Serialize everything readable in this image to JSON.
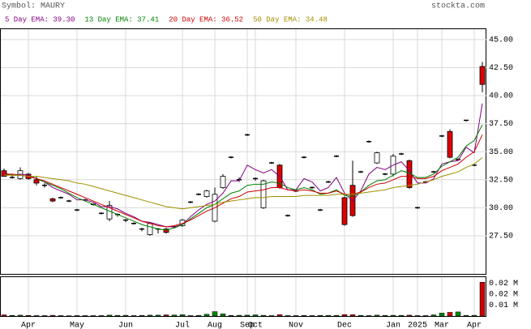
{
  "chart_data": {
    "type": "candlestick",
    "symbol": "Symbol: MAURY",
    "source": "stockta.com",
    "open": [
      33.3,
      32.7,
      32.6,
      33.0,
      32.5,
      32.0,
      30.8,
      30.9,
      30.6,
      29.8,
      30.7,
      30.3,
      29.5,
      29.0,
      29.3,
      28.8,
      28.6,
      28.0,
      27.6,
      28.0,
      28.1,
      28.3,
      28.4,
      30.5,
      31.2,
      31.0,
      28.8,
      31.8,
      34.5,
      32.5,
      36.5,
      32.5,
      30.0,
      34.0,
      33.8,
      29.3,
      31.5,
      34.5,
      31.8,
      29.8,
      32.3,
      34.6,
      30.9,
      32.0,
      33.2,
      35.9,
      34.0,
      33.0,
      33.0,
      34.8,
      34.2,
      30.0,
      32.3,
      33.2,
      36.4,
      36.8,
      34.3,
      37.7,
      33.8,
      42.6
    ],
    "high": [
      33.5,
      32.9,
      33.6,
      33.1,
      32.8,
      32.2,
      30.9,
      31.0,
      30.7,
      29.9,
      30.8,
      30.4,
      29.6,
      30.6,
      29.5,
      29.0,
      28.7,
      28.2,
      28.7,
      28.2,
      28.2,
      28.4,
      29.0,
      30.6,
      31.3,
      31.6,
      31.8,
      33.0,
      34.6,
      32.7,
      36.6,
      32.7,
      32.5,
      34.1,
      33.9,
      29.4,
      31.6,
      34.6,
      31.9,
      29.9,
      32.4,
      34.7,
      31.0,
      34.2,
      33.3,
      36.0,
      35.0,
      33.1,
      34.8,
      34.9,
      34.3,
      30.1,
      32.4,
      33.3,
      36.5,
      37.0,
      34.4,
      37.8,
      33.9,
      43.0
    ],
    "low": [
      32.8,
      32.6,
      32.5,
      32.5,
      32.0,
      31.8,
      30.5,
      30.8,
      30.5,
      29.7,
      30.6,
      30.2,
      29.4,
      28.8,
      29.2,
      28.7,
      28.5,
      27.9,
      27.5,
      27.7,
      27.7,
      28.2,
      28.3,
      30.4,
      31.1,
      30.9,
      28.7,
      31.7,
      34.4,
      32.3,
      36.4,
      32.4,
      29.9,
      33.9,
      31.7,
      29.2,
      31.4,
      34.4,
      31.7,
      29.7,
      32.2,
      34.5,
      28.4,
      29.2,
      33.1,
      35.8,
      33.9,
      32.9,
      32.8,
      34.7,
      31.7,
      29.9,
      32.2,
      33.1,
      36.3,
      34.4,
      34.2,
      37.7,
      33.7,
      40.3
    ],
    "close": [
      32.8,
      32.7,
      33.3,
      32.6,
      32.2,
      32.0,
      30.6,
      30.9,
      30.6,
      29.8,
      30.7,
      30.3,
      29.5,
      30.2,
      29.4,
      28.9,
      28.6,
      28.1,
      28.6,
      28.1,
      27.8,
      28.3,
      28.9,
      30.5,
      31.2,
      31.5,
      31.2,
      32.8,
      34.5,
      32.5,
      36.5,
      32.6,
      32.4,
      34.0,
      31.8,
      29.3,
      31.5,
      34.5,
      31.8,
      29.8,
      32.3,
      34.6,
      28.5,
      29.3,
      33.2,
      35.9,
      34.9,
      33.0,
      34.6,
      34.8,
      31.8,
      30.0,
      32.3,
      33.2,
      36.4,
      34.5,
      34.3,
      37.8,
      33.8,
      41.0
    ],
    "volume": [
      0.0008,
      0.0004,
      0.0006,
      0.0004,
      0.0003,
      0.0003,
      0.0005,
      0.0003,
      0.0002,
      0.0003,
      0.0003,
      0.0003,
      0.0003,
      0.0006,
      0.0004,
      0.0005,
      0.0003,
      0.0004,
      0.0006,
      0.0006,
      0.0008,
      0.0007,
      0.0009,
      0.0003,
      0.0004,
      0.0012,
      0.003,
      0.0015,
      0.0004,
      0.0005,
      0.0006,
      0.0008,
      0.0005,
      0.0003,
      0.0009,
      0.0003,
      0.0003,
      0.0004,
      0.0003,
      0.0004,
      0.0004,
      0.0004,
      0.001,
      0.0009,
      0.0004,
      0.0003,
      0.0006,
      0.0004,
      0.0005,
      0.0004,
      0.0006,
      0.0003,
      0.0003,
      0.0008,
      0.002,
      0.0025,
      0.0028,
      0.0004,
      0.0005,
      0.023
    ],
    "up_color": "#ffffff",
    "down_color": "#dd0000",
    "volume_up_color": "#008800",
    "volume_down_color": "#cc0000",
    "series": [
      {
        "name": "5 Day EMA: 39.30",
        "color": "#800080",
        "values": [
          33.1,
          32.9,
          33.0,
          32.9,
          32.6,
          32.3,
          31.8,
          31.5,
          31.2,
          30.7,
          30.7,
          30.5,
          30.1,
          30.1,
          29.9,
          29.5,
          29.2,
          28.8,
          28.7,
          28.5,
          28.3,
          28.3,
          28.5,
          29.2,
          29.8,
          30.3,
          30.6,
          31.3,
          32.4,
          32.4,
          33.8,
          33.4,
          33.1,
          33.4,
          32.8,
          31.6,
          31.6,
          32.6,
          32.3,
          31.5,
          31.8,
          32.7,
          31.3,
          30.6,
          31.5,
          33.0,
          33.6,
          33.4,
          33.8,
          34.1,
          33.3,
          32.2,
          32.2,
          32.6,
          33.9,
          34.1,
          34.2,
          35.4,
          34.9,
          39.3
        ]
      },
      {
        "name": "13 Day EMA: 37.41",
        "color": "#008000",
        "values": [
          33.0,
          32.9,
          32.9,
          32.8,
          32.6,
          32.3,
          32.0,
          31.7,
          31.3,
          30.9,
          30.6,
          30.3,
          30.0,
          29.7,
          29.4,
          29.1,
          28.8,
          28.5,
          28.3,
          28.1,
          28.0,
          28.2,
          28.5,
          29.0,
          29.5,
          30.0,
          30.3,
          30.8,
          31.3,
          31.5,
          32.0,
          32.1,
          32.1,
          32.3,
          32.2,
          31.8,
          31.6,
          31.8,
          31.6,
          31.2,
          31.3,
          31.6,
          31.1,
          31.0,
          31.4,
          32.0,
          32.4,
          32.5,
          32.9,
          33.3,
          33.1,
          32.7,
          32.7,
          33.0,
          33.7,
          34.1,
          34.5,
          35.5,
          36.0,
          37.41
        ]
      },
      {
        "name": "20 Day EMA: 36.52",
        "color": "#cc0000",
        "values": [
          33.0,
          33.0,
          32.9,
          32.8,
          32.6,
          32.4,
          32.1,
          31.8,
          31.5,
          31.2,
          30.9,
          30.6,
          30.3,
          30.0,
          29.7,
          29.4,
          29.1,
          28.8,
          28.6,
          28.4,
          28.3,
          28.4,
          28.6,
          28.9,
          29.3,
          29.7,
          30.0,
          30.4,
          30.8,
          31.0,
          31.4,
          31.5,
          31.6,
          31.8,
          31.8,
          31.6,
          31.5,
          31.6,
          31.5,
          31.3,
          31.3,
          31.5,
          31.2,
          31.2,
          31.4,
          31.8,
          32.1,
          32.2,
          32.5,
          32.8,
          32.8,
          32.6,
          32.6,
          32.8,
          33.3,
          33.6,
          33.9,
          34.5,
          35.0,
          36.52
        ]
      },
      {
        "name": "50 Day EMA: 34.48",
        "color": "#a09000",
        "values": [
          32.9,
          32.9,
          32.9,
          32.8,
          32.8,
          32.7,
          32.6,
          32.5,
          32.4,
          32.2,
          32.1,
          31.9,
          31.7,
          31.5,
          31.3,
          31.1,
          30.9,
          30.7,
          30.5,
          30.3,
          30.1,
          30.0,
          29.9,
          30.0,
          30.1,
          30.2,
          30.3,
          30.5,
          30.6,
          30.7,
          30.8,
          30.9,
          30.9,
          31.0,
          31.0,
          31.0,
          31.0,
          31.1,
          31.1,
          31.1,
          31.1,
          31.2,
          31.2,
          31.2,
          31.3,
          31.4,
          31.5,
          31.6,
          31.8,
          31.9,
          32.0,
          32.1,
          32.3,
          32.5,
          32.8,
          33.0,
          33.2,
          33.6,
          33.9,
          34.48
        ]
      }
    ],
    "xlim": [
      -0.5,
      59.5
    ],
    "xticks": [
      {
        "value": 3,
        "label": "Apr"
      },
      {
        "value": 9,
        "label": "May"
      },
      {
        "value": 15,
        "label": "Jun"
      },
      {
        "value": 22,
        "label": "Jul"
      },
      {
        "value": 26,
        "label": "Aug"
      },
      {
        "value": 30,
        "label": "Sep"
      },
      {
        "value": 31,
        "label": "Oct"
      },
      {
        "value": 36,
        "label": "Nov"
      },
      {
        "value": 42,
        "label": "Dec"
      },
      {
        "value": 48,
        "label": "Jan"
      },
      {
        "value": 51,
        "label": "2025"
      },
      {
        "value": 54,
        "label": "Mar"
      },
      {
        "value": 58,
        "label": "Apr"
      }
    ],
    "ylim": [
      24.1,
      46.0
    ],
    "yticks": [
      {
        "value": 27.5,
        "label": "27.50"
      },
      {
        "value": 30,
        "label": "30.00"
      },
      {
        "value": 32.5,
        "label": "32.50"
      },
      {
        "value": 35,
        "label": "35.00"
      },
      {
        "value": 37.5,
        "label": "37.50"
      },
      {
        "value": 40,
        "label": "40.00"
      },
      {
        "value": 42.5,
        "label": "42.50"
      },
      {
        "value": 45,
        "label": "45.00"
      }
    ],
    "vol_ylim": [
      0,
      0.027
    ],
    "vol_yticks": [
      {
        "value": 0.0075,
        "label": "0.01 M"
      },
      {
        "value": 0.015,
        "label": "0.02 M"
      },
      {
        "value": 0.0225,
        "label": "0.02 M"
      }
    ],
    "grid": true
  }
}
